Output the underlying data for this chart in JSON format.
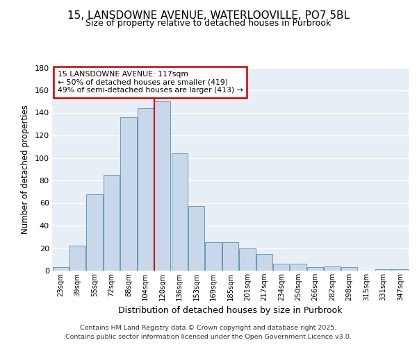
{
  "title": "15, LANSDOWNE AVENUE, WATERLOOVILLE, PO7 5BL",
  "subtitle": "Size of property relative to detached houses in Purbrook",
  "xlabel": "Distribution of detached houses by size in Purbrook",
  "ylabel": "Number of detached properties",
  "bar_color": "#c8d8ea",
  "bar_edge_color": "#6699bb",
  "categories": [
    "23sqm",
    "39sqm",
    "55sqm",
    "72sqm",
    "88sqm",
    "104sqm",
    "120sqm",
    "136sqm",
    "153sqm",
    "169sqm",
    "185sqm",
    "201sqm",
    "217sqm",
    "234sqm",
    "250sqm",
    "266sqm",
    "282sqm",
    "298sqm",
    "315sqm",
    "331sqm",
    "347sqm"
  ],
  "bar_heights": [
    3,
    22,
    68,
    85,
    136,
    144,
    150,
    104,
    57,
    25,
    25,
    20,
    15,
    6,
    6,
    3,
    4,
    3,
    0,
    1,
    1
  ],
  "ylim": [
    0,
    180
  ],
  "yticks": [
    0,
    20,
    40,
    60,
    80,
    100,
    120,
    140,
    160,
    180
  ],
  "vline_position": 6.0,
  "vline_color": "#cc0000",
  "annotation_text": "15 LANSDOWNE AVENUE: 117sqm\n← 50% of detached houses are smaller (419)\n49% of semi-detached houses are larger (413) →",
  "annotation_box_color": "#cc0000",
  "annotation_box_facecolor": "white",
  "footer_line1": "Contains HM Land Registry data © Crown copyright and database right 2025.",
  "footer_line2": "Contains public sector information licensed under the Open Government Licence v3.0.",
  "bg_color": "#e8eef5",
  "grid_color": "white",
  "fig_bg_color": "white"
}
